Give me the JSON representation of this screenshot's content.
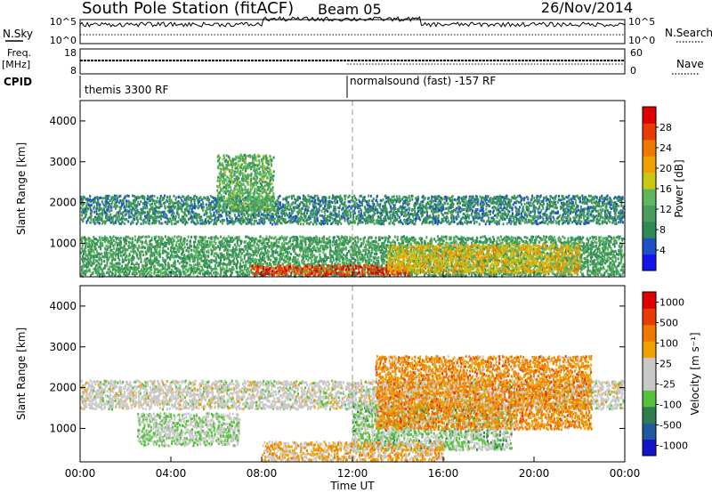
{
  "header": {
    "title": "South Pole Station (fitACF)",
    "beam": "Beam 05",
    "date": "26/Nov/2014"
  },
  "params": {
    "nsky_label": "N.Sky",
    "nsky_ticks": [
      "10^5",
      "10^0"
    ],
    "nsearch_label": "N.Search",
    "nsearch_ticks": [
      "10^5",
      "10^0"
    ],
    "freq_label": "Freq.",
    "freq_unit": "[MHz]",
    "freq_ticks": [
      "18",
      "8"
    ],
    "nave_label": "Nave",
    "nave_ticks": [
      "60",
      "0"
    ],
    "cpid_label": "CPID",
    "cpid_segments": [
      "themis 3300 RF",
      "normalsound (fast) -157 RF"
    ]
  },
  "x_axis": {
    "label": "Time UT",
    "ticks": [
      "00:00",
      "04:00",
      "08:00",
      "12:00",
      "16:00",
      "20:00",
      "00:00"
    ]
  },
  "colors": {
    "power_scale": [
      "#1414f0",
      "#1e50c8",
      "#2e8b57",
      "#4a9e5c",
      "#5cb85c",
      "#c8c814",
      "#f0a000",
      "#f07800",
      "#e83c00",
      "#e00000"
    ],
    "velocity_scale": [
      "#1414c8",
      "#1e5aa0",
      "#2e7d4f",
      "#54c23a",
      "#c8c8c8",
      "#c8c8c8",
      "#f0a000",
      "#f07800",
      "#e83c00",
      "#e00000"
    ]
  },
  "chart_data": [
    {
      "type": "heatmap",
      "title": "Power",
      "xlabel": "Time UT",
      "ylabel": "Slant Range [km]",
      "x_range_hours": [
        0,
        24
      ],
      "ylim": [
        180,
        4500
      ],
      "y_ticks": [
        1000,
        2000,
        3000,
        4000
      ],
      "colorbar": {
        "label": "Power [dB]",
        "range": [
          0,
          30
        ],
        "ticks": [
          "4",
          "8",
          "12",
          "16",
          "20",
          "24",
          "28"
        ]
      },
      "features": [
        {
          "name": "band",
          "t_start": 0.0,
          "t_end": 24.0,
          "range_start_km": 1500,
          "range_end_km": 2200,
          "power_db": 8
        },
        {
          "name": "near-range",
          "t_start": 0.0,
          "t_end": 24.0,
          "range_start_km": 180,
          "range_end_km": 1200,
          "power_db": 10
        },
        {
          "name": "strong",
          "t_start": 7.5,
          "t_end": 14.5,
          "range_start_km": 250,
          "range_end_km": 500,
          "power_db": 26
        },
        {
          "name": "strong",
          "t_start": 13.5,
          "t_end": 22.0,
          "range_start_km": 300,
          "range_end_km": 1000,
          "power_db": 18
        },
        {
          "name": "arc",
          "t_start": 6.0,
          "t_end": 8.5,
          "range_start_km": 1800,
          "range_end_km": 3200,
          "power_db": 12
        }
      ]
    },
    {
      "type": "heatmap",
      "title": "Velocity",
      "xlabel": "Time UT",
      "ylabel": "Slant Range [km]",
      "x_range_hours": [
        0,
        24
      ],
      "ylim": [
        180,
        4500
      ],
      "y_ticks": [
        1000,
        2000,
        3000,
        4000
      ],
      "colorbar": {
        "label": "Velocity [m s⁻¹]",
        "range": [
          -1000,
          1000
        ],
        "ticks": [
          "1000",
          "500",
          "100",
          "25",
          "-25",
          "-100",
          "-500",
          "-1000"
        ]
      },
      "features": [
        {
          "name": "band",
          "t_start": 0.0,
          "t_end": 24.0,
          "range_start_km": 1500,
          "range_end_km": 2200,
          "velocity_ms": 0
        },
        {
          "name": "drift",
          "t_start": 2.5,
          "t_end": 7.0,
          "range_start_km": 600,
          "range_end_km": 1400,
          "velocity_ms": -150
        },
        {
          "name": "drift",
          "t_start": 12.0,
          "t_end": 19.0,
          "range_start_km": 500,
          "range_end_km": 1600,
          "velocity_ms": -200
        },
        {
          "name": "approach",
          "t_start": 8.0,
          "t_end": 16.0,
          "range_start_km": 200,
          "range_end_km": 700,
          "velocity_ms": 250
        },
        {
          "name": "approach",
          "t_start": 13.0,
          "t_end": 22.5,
          "range_start_km": 1000,
          "range_end_km": 2800,
          "velocity_ms": 400
        }
      ]
    }
  ]
}
